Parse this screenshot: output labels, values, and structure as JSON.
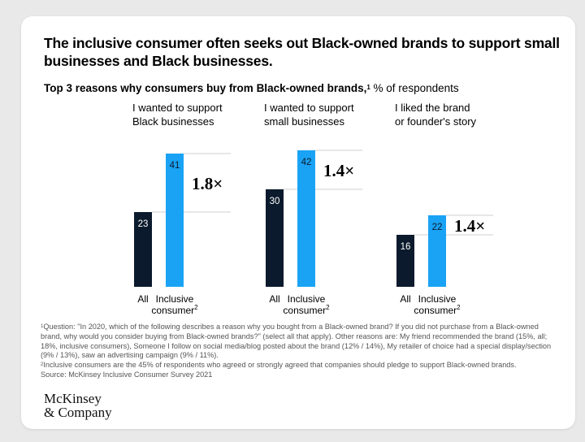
{
  "headline": "The inclusive consumer often seeks out Black-owned brands to support small businesses and Black businesses.",
  "subtitle": {
    "bold": "Top 3 reasons why consumers buy from Black-owned brands,",
    "sup": "1",
    "rest": " % of respondents"
  },
  "chart_data": {
    "type": "bar",
    "title": "Top 3 reasons why consumers buy from Black-owned brands",
    "ylabel": "% of respondents",
    "panels": [
      {
        "title": [
          "I wanted to support",
          "Black businesses"
        ],
        "all": 23,
        "inclusive": 41,
        "multiplier": "1.8×"
      },
      {
        "title": [
          "I wanted to support",
          "small businesses"
        ],
        "all": 30,
        "inclusive": 42,
        "multiplier": "1.4×"
      },
      {
        "title": [
          "I liked the brand",
          "or founder's story"
        ],
        "all": 16,
        "inclusive": 22,
        "multiplier": "1.4×"
      }
    ],
    "series": [
      {
        "name": "All",
        "color": "#0b1a2c"
      },
      {
        "name": "Inclusive consumer",
        "sup": "2",
        "color": "#1aa3f5"
      }
    ]
  },
  "footnotes": {
    "f1_sup": "1",
    "f1": "Question: \"In 2020, which of the following describes a reason why you bought from a Black-owned brand? If you did not purchase from a Black-owned brand, why would you consider buying from Black-owned brands?\" (select all that apply). Other reasons are: My friend recommended the brand (15%, all; 18%, inclusive consumers), Someone I follow on social media/blog posted about the brand (12% / 14%), My retailer of choice had a special display/section (9% / 13%), saw an advertising campaign (9% / 11%).",
    "f2_sup": "2",
    "f2": "Inclusive consumers are the 45% of respondents who agreed or strongly agreed that companies should pledge to support Black-owned brands.",
    "source": "Source: McKinsey Inclusive Consumer Survey 2021"
  },
  "logo": {
    "line1": "McKinsey",
    "line2": "& Company"
  }
}
